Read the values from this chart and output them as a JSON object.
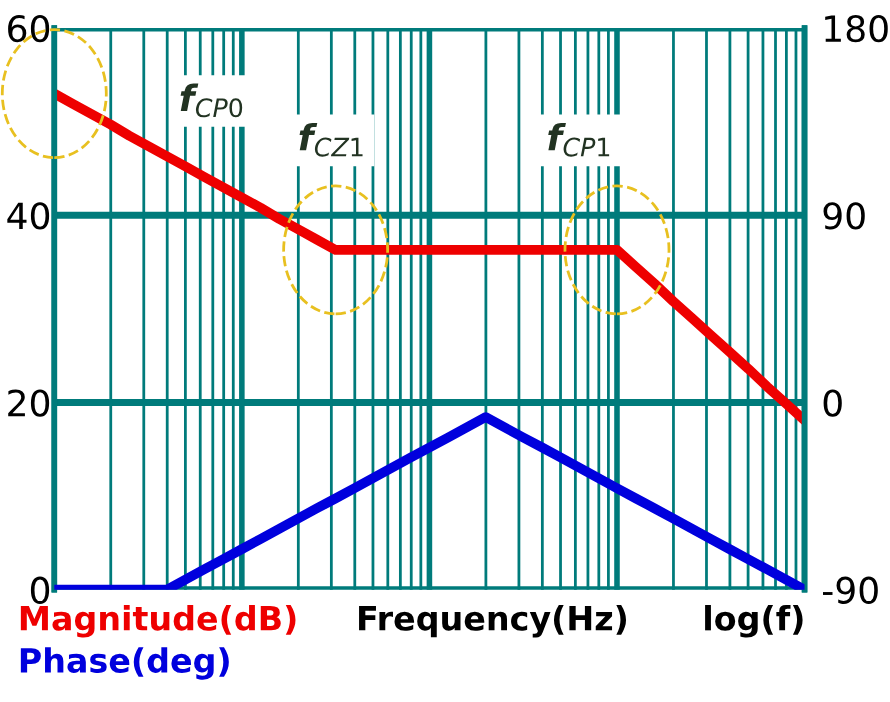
{
  "chart_data": {
    "type": "line",
    "xlabel": "Frequency(Hz)",
    "categories": [
      null,
      null,
      null,
      null,
      null,
      null,
      null,
      null,
      null,
      null,
      null,
      null,
      null,
      null,
      null,
      null,
      null,
      null,
      null,
      null,
      null,
      null,
      null,
      null,
      null,
      null,
      null,
      null,
      null,
      null,
      null,
      null,
      null,
      null,
      null,
      null,
      null,
      null,
      null,
      null,
      null
    ],
    "ylim": [
      0,
      60
    ],
    "yticks": [
      0,
      20,
      40,
      60
    ],
    "y2lim": [
      -90,
      180
    ],
    "y2ticks": [
      -90,
      0,
      90,
      180
    ],
    "tick_labels": "y",
    "grid": true,
    "legend": "bottom left",
    "marker": "none",
    "line_style": "solid",
    "series": [
      {
        "name": "Magnitude(dB)",
        "color": "#ee0000",
        "values": [
          53,
          51.9,
          50.8,
          49.7,
          48.5,
          47.4,
          46.3,
          45.2,
          44.1,
          43.0,
          41.9,
          40.8,
          39.6,
          38.5,
          37.4,
          36.3,
          36.3,
          36.3,
          36.3,
          36.3,
          36.3,
          36.3,
          36.3,
          36.3,
          36.3,
          36.3,
          36.3,
          36.3,
          36.3,
          36.3,
          36.3,
          34.5,
          32.7,
          30.8,
          29.0,
          27.2,
          25.4,
          23.6,
          21.7,
          19.9,
          18.1
        ]
      },
      {
        "name": "Phase(deg)",
        "color": "#0000dd",
        "axis": "y2",
        "values": [
          -90,
          -90,
          -90,
          -90,
          -90,
          -90,
          -90,
          -85.1,
          -80.2,
          -75.4,
          -70.5,
          -65.6,
          -60.7,
          -55.8,
          -50.9,
          -46.1,
          -41.2,
          -36.3,
          -31.4,
          -26.5,
          -21.6,
          -16.8,
          -11.9,
          -7,
          -11.9,
          -16.8,
          -21.6,
          -26.5,
          -31.4,
          -36.3,
          -41.2,
          -46.1,
          -50.9,
          -55.8,
          -60.7,
          -65.6,
          -70.5,
          -75.4,
          -80.2,
          -85.1,
          -90
        ]
      }
    ],
    "annotations": [
      "f$_{CP0}$",
      "f$_{CZ1}$",
      "f$_{CP1}$",
      "log(f)"
    ]
  }
}
